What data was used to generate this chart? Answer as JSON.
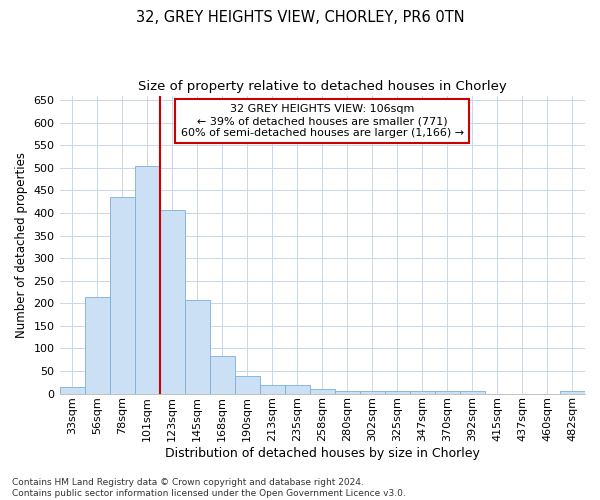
{
  "title1": "32, GREY HEIGHTS VIEW, CHORLEY, PR6 0TN",
  "title2": "Size of property relative to detached houses in Chorley",
  "xlabel": "Distribution of detached houses by size in Chorley",
  "ylabel": "Number of detached properties",
  "categories": [
    "33sqm",
    "56sqm",
    "78sqm",
    "101sqm",
    "123sqm",
    "145sqm",
    "168sqm",
    "190sqm",
    "213sqm",
    "235sqm",
    "258sqm",
    "280sqm",
    "302sqm",
    "325sqm",
    "347sqm",
    "370sqm",
    "392sqm",
    "415sqm",
    "437sqm",
    "460sqm",
    "482sqm"
  ],
  "values": [
    15,
    213,
    435,
    503,
    407,
    207,
    83,
    39,
    18,
    18,
    11,
    5,
    5,
    5,
    5,
    5,
    5,
    0,
    0,
    0,
    5
  ],
  "bar_color": "#cce0f5",
  "bar_edge_color": "#7ab0d8",
  "grid_color": "#c8d8e8",
  "vline_color": "#cc0000",
  "vline_x_index": 3,
  "annotation_text": "32 GREY HEIGHTS VIEW: 106sqm\n← 39% of detached houses are smaller (771)\n60% of semi-detached houses are larger (1,166) →",
  "annotation_box_facecolor": "white",
  "annotation_box_edgecolor": "#cc0000",
  "ylim": [
    0,
    660
  ],
  "yticks": [
    0,
    50,
    100,
    150,
    200,
    250,
    300,
    350,
    400,
    450,
    500,
    550,
    600,
    650
  ],
  "footnote": "Contains HM Land Registry data © Crown copyright and database right 2024.\nContains public sector information licensed under the Open Government Licence v3.0.",
  "title1_fontsize": 10.5,
  "title2_fontsize": 9.5,
  "xlabel_fontsize": 9,
  "ylabel_fontsize": 8.5,
  "tick_fontsize": 8,
  "annotation_fontsize": 8,
  "footnote_fontsize": 6.5
}
